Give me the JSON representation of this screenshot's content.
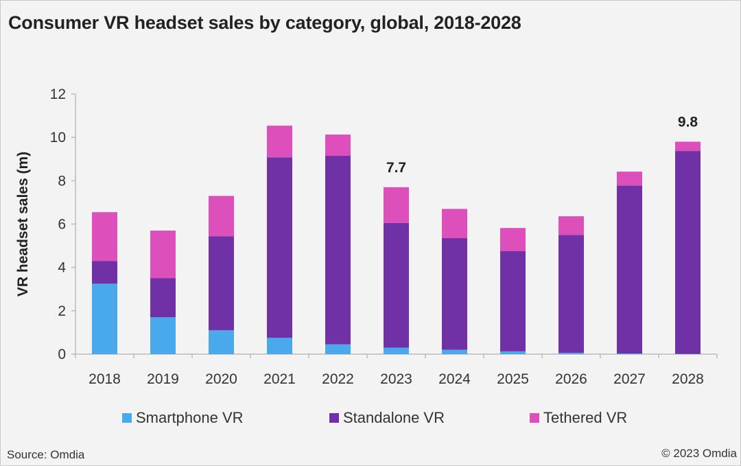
{
  "chart_data": {
    "type": "bar",
    "stacked": true,
    "title": "Consumer VR headset sales by category, global, 2018-2028",
    "xlabel": "",
    "ylabel": "VR headset sales (m)",
    "ylim": [
      0,
      12
    ],
    "yticks": [
      "0",
      "2",
      "4",
      "6",
      "8",
      "10",
      "12"
    ],
    "grid": false,
    "legend_position": "bottom",
    "categories": [
      "2018",
      "2019",
      "2020",
      "2021",
      "2022",
      "2023",
      "2024",
      "2025",
      "2026",
      "2027",
      "2028"
    ],
    "series": [
      {
        "name": "Smartphone VR",
        "color": "#4aa9ea",
        "values": [
          3.25,
          1.7,
          1.1,
          0.75,
          0.45,
          0.3,
          0.2,
          0.13,
          0.06,
          0.03,
          0.01
        ]
      },
      {
        "name": "Standalone VR",
        "color": "#7131a6",
        "values": [
          1.05,
          1.81,
          4.34,
          8.33,
          8.7,
          5.75,
          5.15,
          4.62,
          5.44,
          7.75,
          9.36
        ]
      },
      {
        "name": "Tethered VR",
        "color": "#dd4fba",
        "values": [
          2.25,
          2.19,
          1.86,
          1.46,
          0.98,
          1.65,
          1.35,
          1.07,
          0.86,
          0.64,
          0.43
        ]
      }
    ],
    "annotations": [
      {
        "category": "2023",
        "text": "7.7",
        "value": 7.7
      },
      {
        "category": "2028",
        "text": "9.8",
        "value": 9.8
      }
    ]
  },
  "footer": {
    "source": "Source: Omdia",
    "copyright": "© 2023 Omdia"
  }
}
